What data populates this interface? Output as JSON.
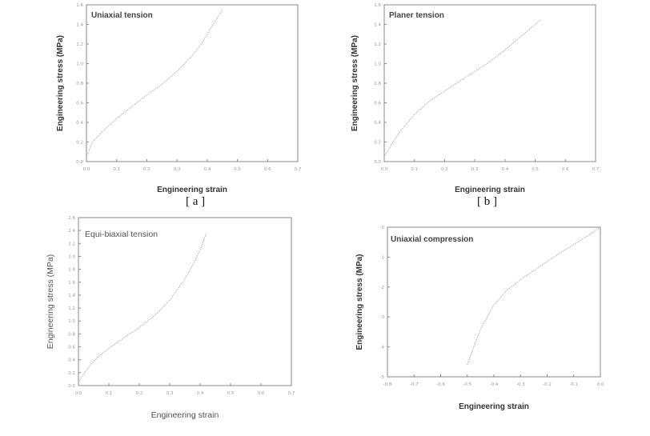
{
  "chart_data": [
    {
      "type": "line",
      "title": "Uniaxial tension",
      "xlabel": "Engineering strain",
      "ylabel": "Engineering stress (MPa)",
      "xlim": [
        0.0,
        0.7
      ],
      "ylim": [
        0.0,
        1.6
      ],
      "xticks": [
        "0.0",
        "0.1",
        "0.2",
        "0.3",
        "0.4",
        "0.5",
        "0.6",
        "0.7"
      ],
      "yticks": [
        "0.0",
        "0.2",
        "0.4",
        "0.6",
        "0.8",
        "1.0",
        "1.2",
        "1.4",
        "1.6"
      ],
      "caption": "[ a ]",
      "series": [
        {
          "x": [
            0.0,
            0.02,
            0.05,
            0.1,
            0.15,
            0.2,
            0.25,
            0.3,
            0.35,
            0.38,
            0.4,
            0.42,
            0.45
          ],
          "y": [
            0.05,
            0.2,
            0.3,
            0.44,
            0.56,
            0.68,
            0.79,
            0.92,
            1.08,
            1.2,
            1.3,
            1.4,
            1.55
          ]
        }
      ]
    },
    {
      "type": "line",
      "title": "Planer tension",
      "xlabel": "Engineering strain",
      "ylabel": "Engineering stress (MPa)",
      "xlim": [
        0.0,
        0.7
      ],
      "ylim": [
        0.0,
        1.6
      ],
      "xticks": [
        "0.0",
        "0.1",
        "0.2",
        "0.3",
        "0.4",
        "0.5",
        "0.6",
        "0.7"
      ],
      "yticks": [
        "0.0",
        "0.2",
        "0.4",
        "0.6",
        "0.8",
        "1.0",
        "1.2",
        "1.4",
        "1.6"
      ],
      "caption": "[ b ]",
      "series": [
        {
          "x": [
            0.0,
            0.02,
            0.05,
            0.1,
            0.15,
            0.2,
            0.25,
            0.3,
            0.35,
            0.4,
            0.45,
            0.5,
            0.52
          ],
          "y": [
            0.05,
            0.15,
            0.3,
            0.48,
            0.62,
            0.72,
            0.82,
            0.92,
            1.02,
            1.14,
            1.27,
            1.4,
            1.45
          ]
        }
      ]
    },
    {
      "type": "line",
      "title": "Equi-biaxial tension",
      "xlabel": "Engineering strain",
      "ylabel": "Engineering stress (MPa)",
      "xlim": [
        0.0,
        0.7
      ],
      "ylim": [
        0.0,
        2.6
      ],
      "xticks": [
        "0.0",
        "0.1",
        "0.2",
        "0.3",
        "0.4",
        "0.5",
        "0.6",
        "0.7"
      ],
      "yticks": [
        "0.0",
        "0.2",
        "0.4",
        "0.6",
        "0.8",
        "1.0",
        "1.2",
        "1.4",
        "1.6",
        "1.8",
        "2.0",
        "2.2",
        "2.4",
        "2.6"
      ],
      "series": [
        {
          "x": [
            0.0,
            0.02,
            0.05,
            0.1,
            0.15,
            0.2,
            0.25,
            0.3,
            0.35,
            0.38,
            0.4,
            0.42
          ],
          "y": [
            0.05,
            0.2,
            0.38,
            0.58,
            0.74,
            0.9,
            1.08,
            1.32,
            1.65,
            1.9,
            2.1,
            2.35
          ]
        }
      ]
    },
    {
      "type": "line",
      "title": "Uniaxial compression",
      "xlabel": "Engineering strain",
      "ylabel": "Engineering stress (MPa)",
      "xlim": [
        -0.8,
        0.0
      ],
      "ylim": [
        -5,
        0
      ],
      "xticks": [
        "-0.8",
        "-0.7",
        "-0.6",
        "-0.5",
        "-0.4",
        "-0.3",
        "-0.2",
        "-0.1",
        "0.0"
      ],
      "yticks": [
        "-5",
        "-4",
        "-3",
        "-2",
        "-1",
        "0"
      ],
      "series": [
        {
          "x": [
            -0.5,
            -0.48,
            -0.45,
            -0.4,
            -0.35,
            -0.3,
            -0.25,
            -0.2,
            -0.15,
            -0.1,
            -0.05,
            0.0
          ],
          "y": [
            -4.6,
            -4.1,
            -3.4,
            -2.6,
            -2.1,
            -1.75,
            -1.45,
            -1.15,
            -0.85,
            -0.58,
            -0.3,
            0.0
          ]
        }
      ]
    }
  ]
}
